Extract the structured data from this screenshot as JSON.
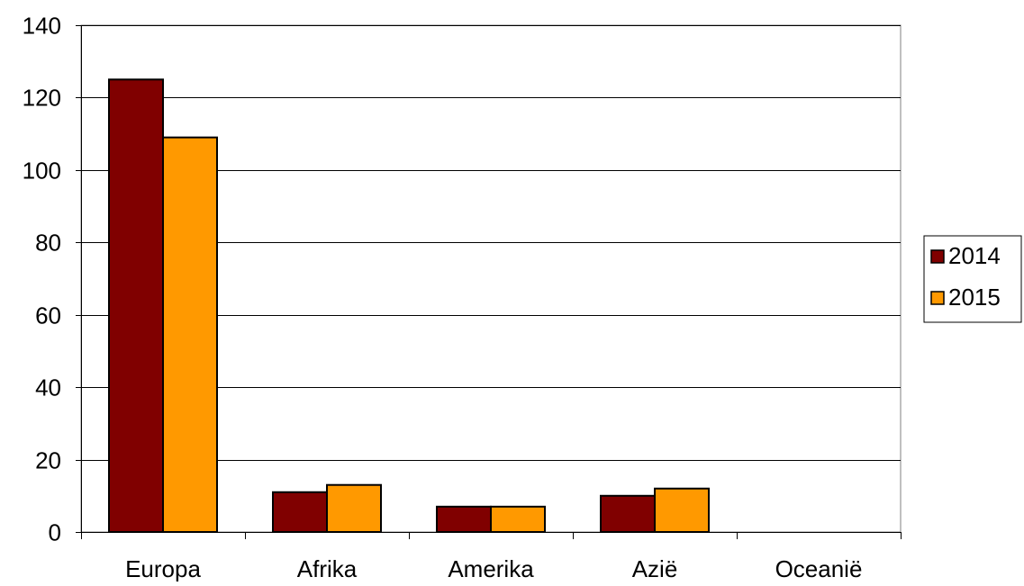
{
  "chart_data": {
    "type": "bar",
    "title": "",
    "xlabel": "",
    "ylabel": "",
    "categories": [
      "Europa",
      "Afrika",
      "Amerika",
      "Azië",
      "Oceanië"
    ],
    "series": [
      {
        "name": "2014",
        "color": "#800000",
        "values": [
          125,
          11,
          7,
          10,
          0
        ]
      },
      {
        "name": "2015",
        "color": "#ff9900",
        "values": [
          109,
          13,
          7,
          12,
          0
        ]
      }
    ],
    "ylim": [
      0,
      140
    ],
    "yticks": [
      0,
      20,
      40,
      60,
      80,
      100,
      120,
      140
    ],
    "grid": true,
    "legend_position": "right"
  }
}
